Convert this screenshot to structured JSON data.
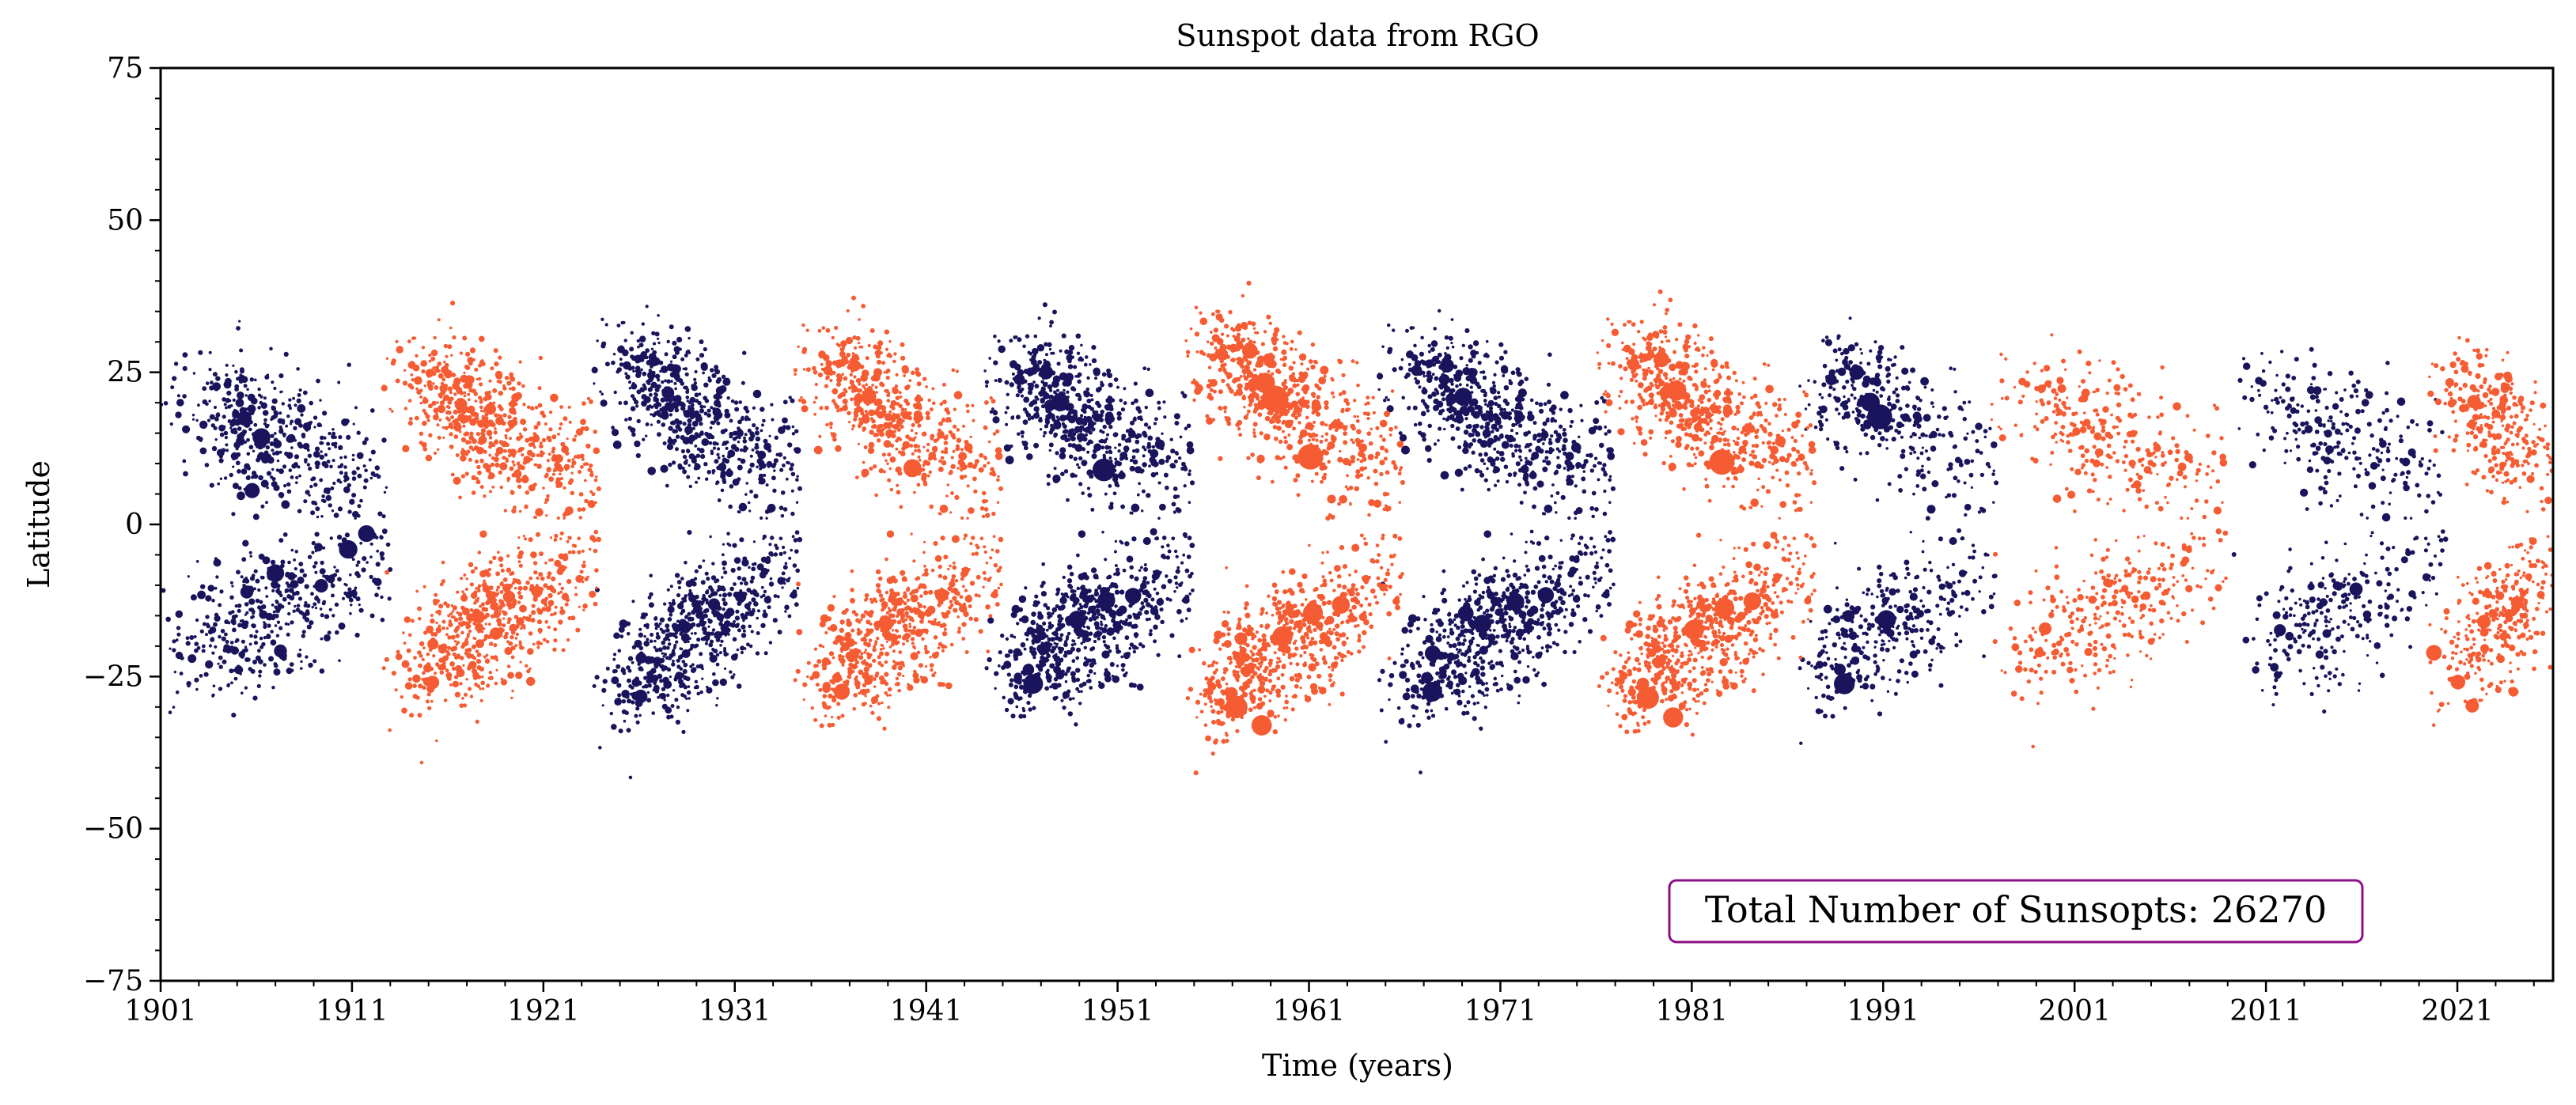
{
  "chart_data": {
    "type": "scatter",
    "title": "Sunspot data from RGO",
    "xlabel": "Time (years)",
    "ylabel": "Latitude",
    "xlim": [
      1901,
      2026
    ],
    "ylim": [
      -75,
      75
    ],
    "xticks": [
      1901,
      1911,
      1921,
      1931,
      1941,
      1951,
      1961,
      1971,
      1981,
      1991,
      2001,
      2011,
      2021
    ],
    "yticks": [
      -75,
      -50,
      -25,
      0,
      25,
      50,
      75
    ],
    "xtick_labels": [
      "1901",
      "1911",
      "1921",
      "1931",
      "1941",
      "1951",
      "1961",
      "1971",
      "1981",
      "1991",
      "2001",
      "2011",
      "2021"
    ],
    "ytick_labels": [
      "−75",
      "−50",
      "−25",
      "0",
      "25",
      "50",
      "75"
    ],
    "grid": false,
    "marker_size_encodes": "sunspot area",
    "series": [
      {
        "color": "#1a145c",
        "cycles": [
          {
            "x": 1901.0,
            "peak": 1905.5,
            "end": 1913.0,
            "lat_start": 22,
            "lat_end": 6,
            "density": 2.1,
            "max_size": 9
          },
          {
            "x": 1923.5,
            "peak": 1928.0,
            "end": 1934.5,
            "lat_start": 28,
            "lat_end": 7,
            "density": 3.0,
            "max_size": 7
          },
          {
            "x": 1944.0,
            "peak": 1948.0,
            "end": 1955.0,
            "lat_start": 25,
            "lat_end": 8,
            "density": 5.6,
            "max_size": 12
          },
          {
            "x": 1964.5,
            "peak": 1969.5,
            "end": 1977.0,
            "lat_start": 27,
            "lat_end": 7,
            "density": 5.6,
            "max_size": 12
          },
          {
            "x": 1986.5,
            "peak": 1989.5,
            "end": 1997.0,
            "lat_start": 25,
            "lat_end": 8,
            "density": 1.6,
            "max_size": 13
          },
          {
            "x": 2009.0,
            "peak": 2014.0,
            "end": 2020.5,
            "lat_start": 22,
            "lat_end": 7,
            "density": 1.2,
            "max_size": 8
          }
        ]
      },
      {
        "color": "#f55c33",
        "cycles": [
          {
            "x": 1912.5,
            "peak": 1917.5,
            "end": 1924.0,
            "lat_start": 25,
            "lat_end": 7,
            "density": 2.8,
            "max_size": 7
          },
          {
            "x": 1934.0,
            "peak": 1938.0,
            "end": 1945.0,
            "lat_start": 27,
            "lat_end": 7,
            "density": 2.7,
            "max_size": 9
          },
          {
            "x": 1954.5,
            "peak": 1958.0,
            "end": 1966.0,
            "lat_start": 30,
            "lat_end": 8,
            "density": 6.8,
            "max_size": 14
          },
          {
            "x": 1976.0,
            "peak": 1980.0,
            "end": 1987.5,
            "lat_start": 28,
            "lat_end": 8,
            "density": 3.3,
            "max_size": 14
          },
          {
            "x": 1996.5,
            "peak": 2001.5,
            "end": 2009.0,
            "lat_start": 22,
            "lat_end": 6,
            "density": 1.4,
            "max_size": 9
          },
          {
            "x": 2019.5,
            "peak": 2023.5,
            "end": 2026.0,
            "lat_start": 24,
            "lat_end": 10,
            "density": 1.4,
            "max_size": 8
          }
        ]
      }
    ],
    "annotation": {
      "text": "Total Number of Sunsopts: 26270",
      "color": "#b5128a",
      "position": "lower-right"
    }
  }
}
